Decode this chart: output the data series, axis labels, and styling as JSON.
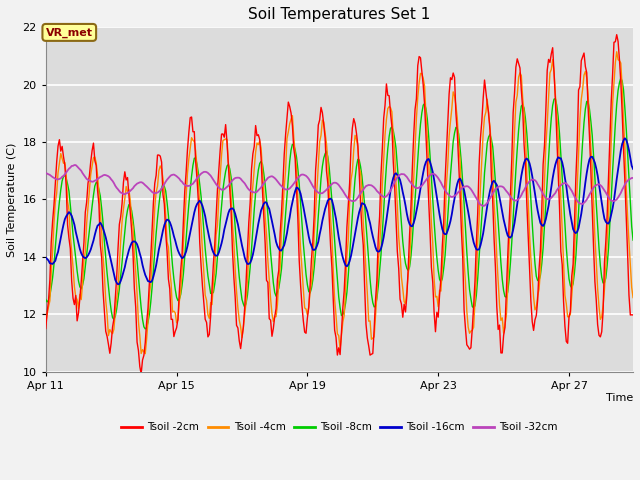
{
  "title": "Soil Temperatures Set 1",
  "xlabel": "Time",
  "ylabel": "Soil Temperature (C)",
  "ylim": [
    10,
    22
  ],
  "yticks": [
    10,
    12,
    14,
    16,
    18,
    20,
    22
  ],
  "x_tick_labels": [
    "Apr 11",
    "Apr 15",
    "Apr 19",
    "Apr 23",
    "Apr 27"
  ],
  "annotation_text": "VR_met",
  "colors": {
    "T2": "#FF0000",
    "T4": "#FF8C00",
    "T8": "#00CC00",
    "T16": "#0000CD",
    "T32": "#BB44BB"
  },
  "legend_labels": [
    "Tsoil -2cm",
    "Tsoil -4cm",
    "Tsoil -8cm",
    "Tsoil -16cm",
    "Tsoil -32cm"
  ],
  "background_color": "#DCDCDC",
  "grid_color": "#FFFFFF",
  "n_days": 18,
  "pts_per_day": 24
}
